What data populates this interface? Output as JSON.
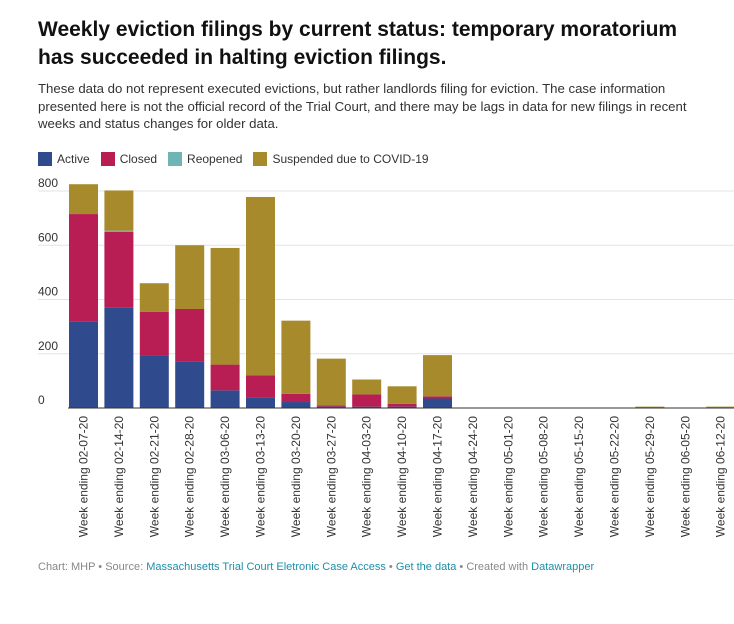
{
  "title": "Weekly eviction filings by current status: temporary moratorium has succeeded in halting eviction filings.",
  "subtitle": "These data do not represent executed evictions, but rather landlords filing for eviction. The case information presented here is not the official record of the Trial Court, and there may be lags in data for new filings in recent weeks and status changes for older data.",
  "footer": {
    "prefix": "Chart: MHP • Source: ",
    "source_link": "Massachusetts Trial Court Eletronic Case Access",
    "sep1": " • ",
    "data_link": "Get the data",
    "sep2": " • Created with ",
    "tool_link": "Datawrapper"
  },
  "chart_data": {
    "type": "bar",
    "stacked": true,
    "categories": [
      "Week ending 02-07-20",
      "Week ending 02-14-20",
      "Week ending 02-21-20",
      "Week ending 02-28-20",
      "Week ending 03-06-20",
      "Week ending 03-13-20",
      "Week ending 03-20-20",
      "Week ending 03-27-20",
      "Week ending 04-03-20",
      "Week ending 04-10-20",
      "Week ending 04-17-20",
      "Week ending 04-24-20",
      "Week ending 05-01-20",
      "Week ending 05-08-20",
      "Week ending 05-15-20",
      "Week ending 05-22-20",
      "Week ending 05-29-20",
      "Week ending 06-05-20",
      "Week ending 06-12-20"
    ],
    "series": [
      {
        "name": "Active",
        "color": "#2f4b8e",
        "values": [
          320,
          370,
          195,
          170,
          65,
          40,
          22,
          5,
          5,
          5,
          35,
          0,
          0,
          0,
          0,
          0,
          0,
          0,
          2
        ]
      },
      {
        "name": "Closed",
        "color": "#b81e53",
        "values": [
          395,
          280,
          160,
          195,
          95,
          80,
          30,
          5,
          45,
          10,
          8,
          0,
          0,
          0,
          0,
          0,
          0,
          0,
          0
        ]
      },
      {
        "name": "Reopened",
        "color": "#6fb5b5",
        "values": [
          0,
          4,
          0,
          0,
          0,
          0,
          0,
          0,
          0,
          0,
          0,
          0,
          0,
          0,
          0,
          0,
          0,
          0,
          0
        ]
      },
      {
        "name": "Suspended due to COVID-19",
        "color": "#a68a2b",
        "values": [
          110,
          148,
          105,
          235,
          430,
          658,
          270,
          172,
          55,
          65,
          152,
          0,
          0,
          0,
          0,
          0,
          5,
          0,
          3
        ]
      }
    ],
    "ylim": [
      0,
      800
    ],
    "yticks": [
      0,
      200,
      400,
      600,
      800
    ],
    "grid": true,
    "legend_position": "top-left"
  }
}
